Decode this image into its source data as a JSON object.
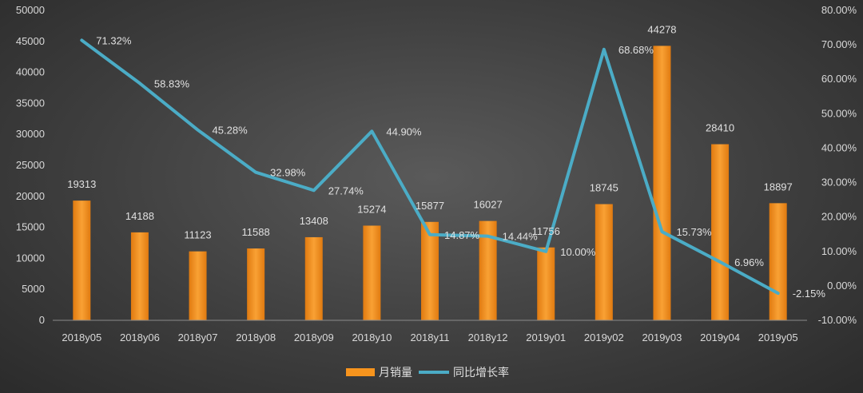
{
  "chart_data": {
    "type": "bar",
    "categories": [
      "2018y05",
      "2018y06",
      "2018y07",
      "2018y08",
      "2018y09",
      "2018y10",
      "2018y11",
      "2018y12",
      "2019y01",
      "2019y02",
      "2019y03",
      "2019y04",
      "2019y05"
    ],
    "series": [
      {
        "name": "月销量",
        "type": "bar",
        "axis": "left",
        "color": "#f7941d",
        "values": [
          19313,
          14188,
          11123,
          11588,
          13408,
          15274,
          15877,
          16027,
          11756,
          18745,
          44278,
          28410,
          18897
        ],
        "labels": [
          "19313",
          "14188",
          "11123",
          "11588",
          "13408",
          "15274",
          "15877",
          "16027",
          "11756",
          "18745",
          "44278",
          "28410",
          "18897"
        ]
      },
      {
        "name": "同比增长率",
        "type": "line",
        "axis": "right",
        "color": "#4bacc6",
        "values": [
          71.32,
          58.83,
          45.28,
          32.98,
          27.74,
          44.9,
          14.87,
          14.44,
          10.0,
          68.68,
          15.73,
          6.96,
          -2.15
        ],
        "labels": [
          "71.32%",
          "58.83%",
          "45.28%",
          "32.98%",
          "27.74%",
          "44.90%",
          "14.87%",
          "14.44%",
          "10.00%",
          "68.68%",
          "15.73%",
          "6.96%",
          "-2.15%"
        ]
      }
    ],
    "y_left": {
      "range": [
        0,
        50000
      ],
      "ticks": [
        "0",
        "5000",
        "10000",
        "15000",
        "20000",
        "25000",
        "30000",
        "35000",
        "40000",
        "45000",
        "50000"
      ]
    },
    "y_right": {
      "range": [
        -10,
        80
      ],
      "ticks": [
        "-10.00%",
        "0.00%",
        "10.00%",
        "20.00%",
        "30.00%",
        "40.00%",
        "50.00%",
        "60.00%",
        "70.00%",
        "80.00%"
      ]
    },
    "grid": false,
    "legend": "bottom-center"
  }
}
